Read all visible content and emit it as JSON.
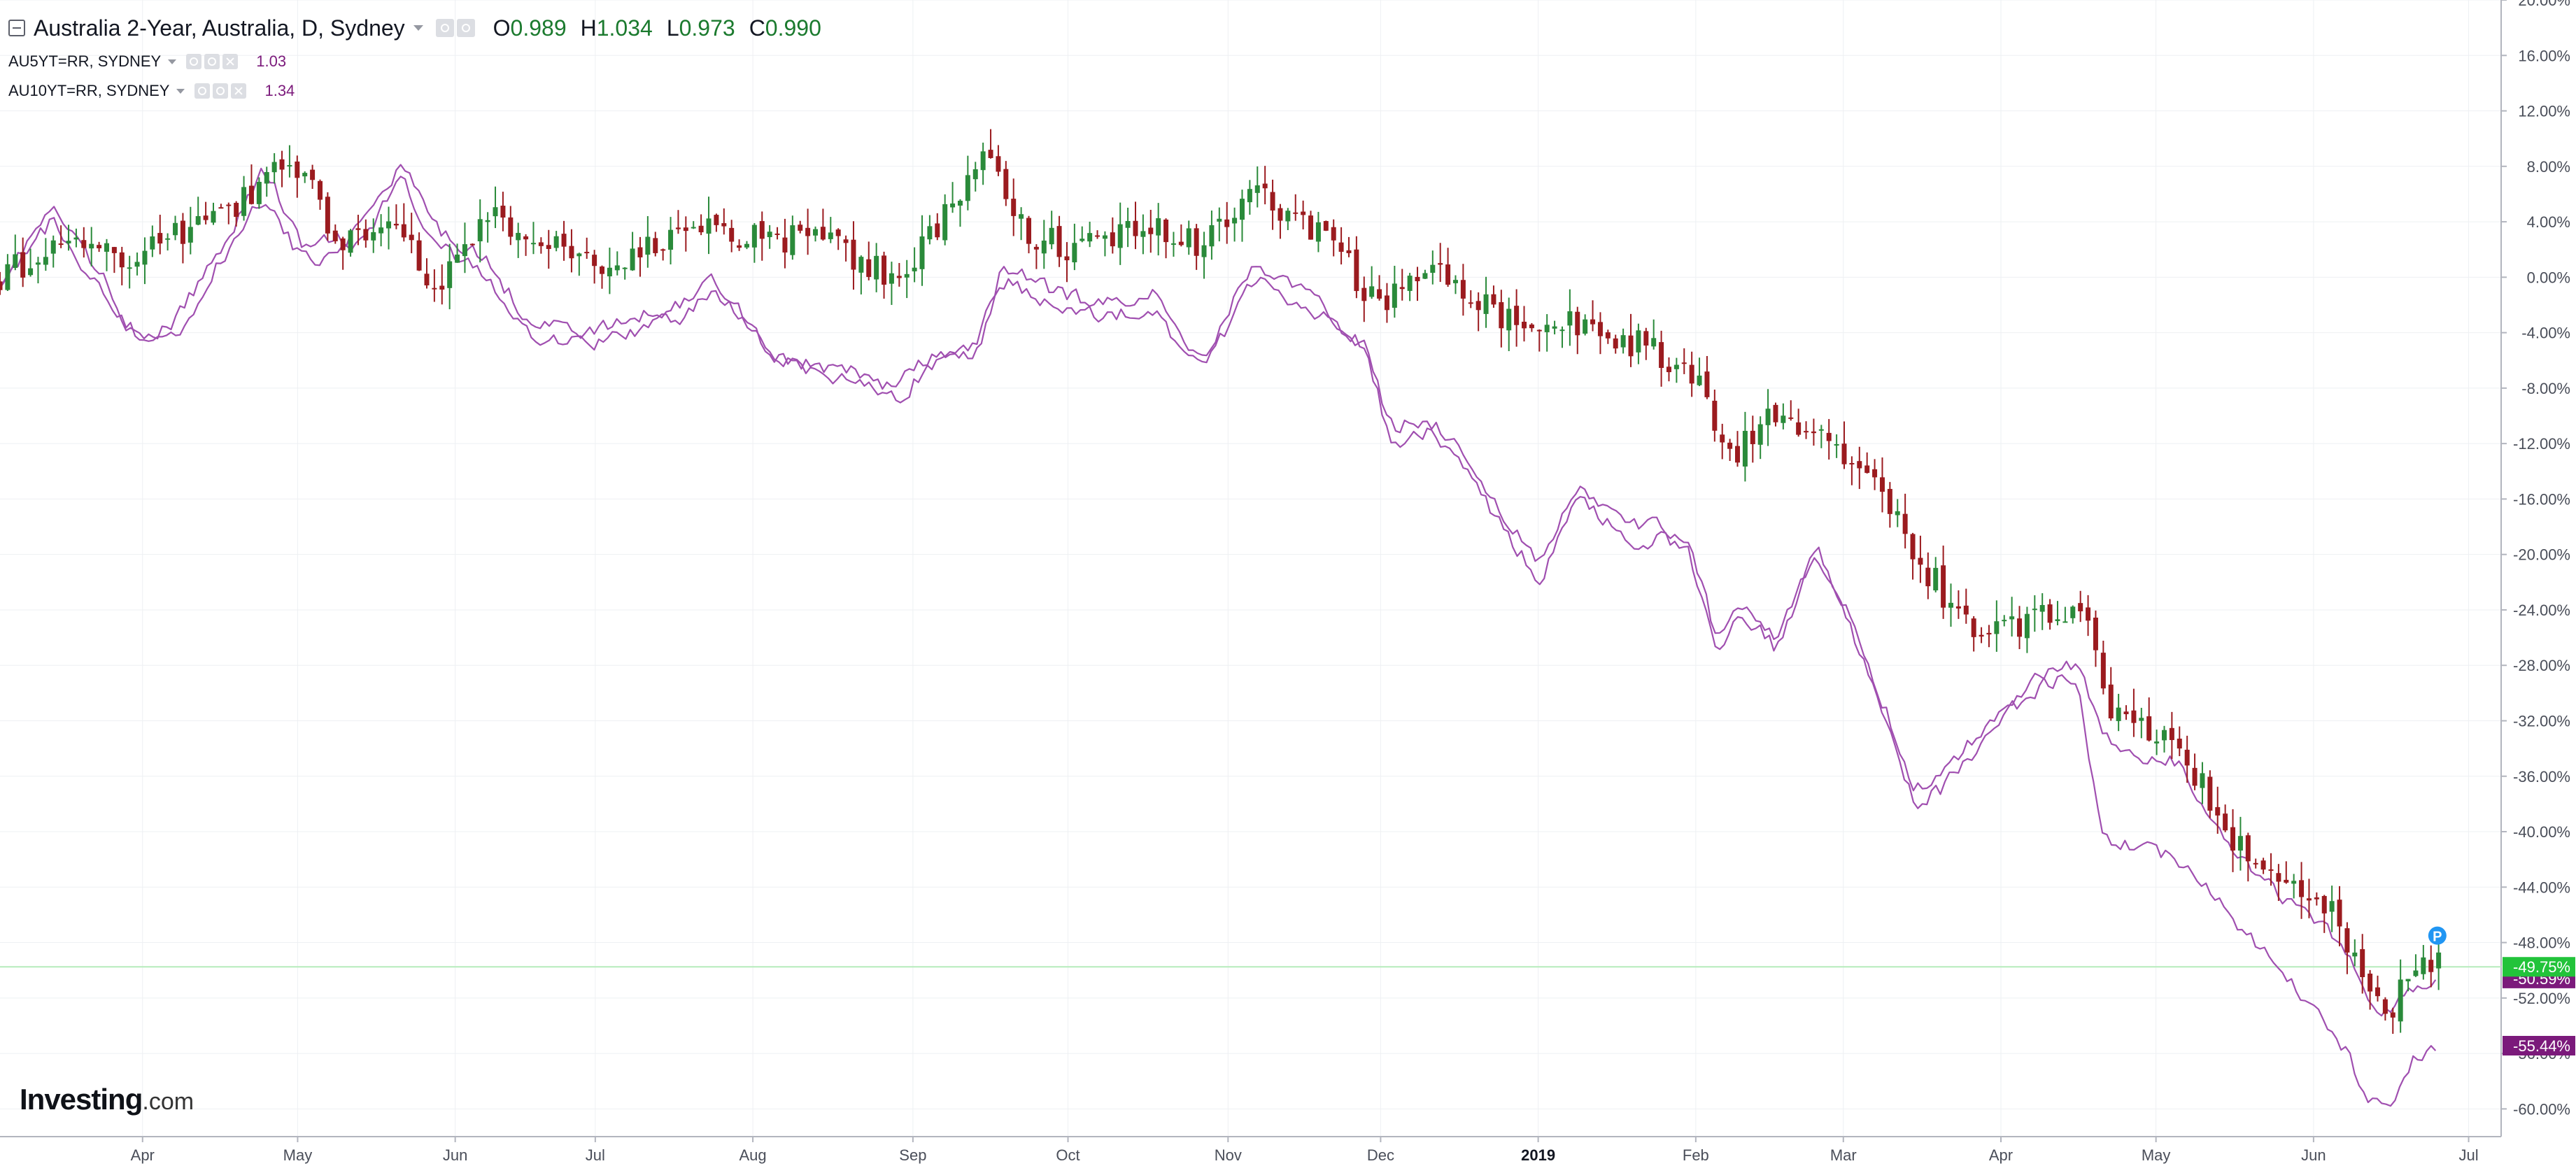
{
  "legend": {
    "main_title": "Australia 2-Year, Australia, D, Sydney",
    "ohlc": [
      {
        "key": "O",
        "value": "0.989"
      },
      {
        "key": "H",
        "value": "1.034"
      },
      {
        "key": "L",
        "value": "0.973"
      },
      {
        "key": "C",
        "value": "0.990"
      }
    ],
    "series_lines": [
      {
        "name": "AU5YT=RR, SYDNEY",
        "value": "1.03"
      },
      {
        "name": "AU10YT=RR, SYDNEY",
        "value": "1.34"
      }
    ]
  },
  "brand": {
    "name": "Investing",
    "suffix": ".com"
  },
  "colors": {
    "up_candle": "#2a8a3a",
    "down_candle": "#9b1b1f",
    "compare_line": "#a04fb0",
    "last_price_badge": "#22c33a",
    "compare_badge": "#7b1a7b",
    "grid": "#eef0f3",
    "axis_text": "#4a4e59"
  },
  "chart_data": {
    "type": "candlestick",
    "title": "Australia 2-Year, Australia, D, Sydney",
    "y_unit": "% change",
    "ylim": [
      -62,
      20
    ],
    "y_ticks": [
      "20.00%",
      "16.00%",
      "12.00%",
      "8.00%",
      "4.00%",
      "0.00%",
      "-4.00%",
      "-8.00%",
      "-12.00%",
      "-16.00%",
      "-20.00%",
      "-24.00%",
      "-28.00%",
      "-32.00%",
      "-36.00%",
      "-40.00%",
      "-44.00%",
      "-48.00%",
      "-52.00%",
      "-56.00%",
      "-60.00%"
    ],
    "y_tick_values": [
      20,
      16,
      12,
      8,
      4,
      0,
      -4,
      -8,
      -12,
      -16,
      -20,
      -24,
      -28,
      -32,
      -36,
      -40,
      -44,
      -48,
      -52,
      -56,
      -60
    ],
    "x_ticks": [
      {
        "label": "Apr",
        "t": 0.057
      },
      {
        "label": "May",
        "t": 0.119
      },
      {
        "label": "Jun",
        "t": 0.182
      },
      {
        "label": "Jul",
        "t": 0.238
      },
      {
        "label": "Aug",
        "t": 0.301
      },
      {
        "label": "Sep",
        "t": 0.365
      },
      {
        "label": "Oct",
        "t": 0.427
      },
      {
        "label": "Nov",
        "t": 0.491
      },
      {
        "label": "Dec",
        "t": 0.552
      },
      {
        "label": "2019",
        "t": 0.615,
        "bold": true
      },
      {
        "label": "Feb",
        "t": 0.678
      },
      {
        "label": "Mar",
        "t": 0.737
      },
      {
        "label": "Apr",
        "t": 0.8
      },
      {
        "label": "May",
        "t": 0.862
      },
      {
        "label": "Jun",
        "t": 0.925
      },
      {
        "label": "Jul",
        "t": 0.987
      }
    ],
    "grid": true,
    "last_values": {
      "main": {
        "label": "-49.75%",
        "value": -49.75
      },
      "au5y": {
        "label": "-50.59%",
        "value": -50.59
      },
      "au10y": {
        "label": "-55.44%",
        "value": -55.44
      }
    },
    "marker_label": "P",
    "main_series": {
      "name": "Australia 2-Year",
      "anchors": [
        [
          0,
          0
        ],
        [
          0.03,
          3
        ],
        [
          0.05,
          1
        ],
        [
          0.08,
          4
        ],
        [
          0.1,
          6
        ],
        [
          0.115,
          9
        ],
        [
          0.135,
          3
        ],
        [
          0.16,
          3
        ],
        [
          0.175,
          -1
        ],
        [
          0.195,
          5
        ],
        [
          0.22,
          2
        ],
        [
          0.25,
          1
        ],
        [
          0.28,
          4
        ],
        [
          0.3,
          3
        ],
        [
          0.33,
          2.5
        ],
        [
          0.36,
          0
        ],
        [
          0.38,
          5
        ],
        [
          0.395,
          10
        ],
        [
          0.41,
          3
        ],
        [
          0.43,
          2
        ],
        [
          0.46,
          4
        ],
        [
          0.48,
          2
        ],
        [
          0.5,
          6
        ],
        [
          0.53,
          3
        ],
        [
          0.55,
          -2
        ],
        [
          0.57,
          1
        ],
        [
          0.6,
          -3
        ],
        [
          0.62,
          -3
        ],
        [
          0.64,
          -4
        ],
        [
          0.66,
          -5
        ],
        [
          0.68,
          -8
        ],
        [
          0.69,
          -13
        ],
        [
          0.71,
          -10
        ],
        [
          0.73,
          -11
        ],
        [
          0.75,
          -15
        ],
        [
          0.77,
          -21
        ],
        [
          0.79,
          -26
        ],
        [
          0.82,
          -24
        ],
        [
          0.835,
          -25
        ],
        [
          0.845,
          -32
        ],
        [
          0.87,
          -33
        ],
        [
          0.89,
          -40
        ],
        [
          0.91,
          -43
        ],
        [
          0.93,
          -45
        ],
        [
          0.94,
          -49
        ],
        [
          0.955,
          -53
        ],
        [
          0.965,
          -50
        ],
        [
          0.975,
          -49.75
        ]
      ]
    },
    "compare_series": [
      {
        "name": "AU5YT=RR, SYDNEY",
        "anchors": [
          [
            0,
            0
          ],
          [
            0.02,
            5
          ],
          [
            0.04,
            0
          ],
          [
            0.055,
            -5
          ],
          [
            0.07,
            -3
          ],
          [
            0.09,
            3
          ],
          [
            0.105,
            8
          ],
          [
            0.12,
            2
          ],
          [
            0.14,
            3
          ],
          [
            0.16,
            8
          ],
          [
            0.175,
            3
          ],
          [
            0.19,
            2
          ],
          [
            0.21,
            -3
          ],
          [
            0.235,
            -4
          ],
          [
            0.27,
            -2
          ],
          [
            0.285,
            0
          ],
          [
            0.31,
            -6
          ],
          [
            0.345,
            -7
          ],
          [
            0.355,
            -8
          ],
          [
            0.37,
            -6
          ],
          [
            0.39,
            -5
          ],
          [
            0.4,
            1
          ],
          [
            0.42,
            -1
          ],
          [
            0.44,
            -2
          ],
          [
            0.46,
            -1
          ],
          [
            0.47,
            -4
          ],
          [
            0.48,
            -6
          ],
          [
            0.5,
            1
          ],
          [
            0.52,
            -1
          ],
          [
            0.545,
            -5
          ],
          [
            0.555,
            -11
          ],
          [
            0.57,
            -10
          ],
          [
            0.585,
            -13
          ],
          [
            0.6,
            -17
          ],
          [
            0.615,
            -21
          ],
          [
            0.63,
            -15
          ],
          [
            0.65,
            -18
          ],
          [
            0.665,
            -18
          ],
          [
            0.675,
            -19
          ],
          [
            0.685,
            -26
          ],
          [
            0.695,
            -23
          ],
          [
            0.71,
            -26
          ],
          [
            0.725,
            -20
          ],
          [
            0.74,
            -25
          ],
          [
            0.765,
            -37
          ],
          [
            0.775,
            -36
          ],
          [
            0.79,
            -33
          ],
          [
            0.805,
            -30
          ],
          [
            0.82,
            -28
          ],
          [
            0.83,
            -28
          ],
          [
            0.84,
            -33
          ],
          [
            0.855,
            -35
          ],
          [
            0.87,
            -35
          ],
          [
            0.885,
            -40
          ],
          [
            0.9,
            -43
          ],
          [
            0.92,
            -46
          ],
          [
            0.935,
            -48
          ],
          [
            0.945,
            -52
          ],
          [
            0.955,
            -53
          ],
          [
            0.965,
            -51
          ],
          [
            0.975,
            -50.59
          ]
        ]
      },
      {
        "name": "AU10YT=RR, SYDNEY",
        "anchors": [
          [
            0,
            0
          ],
          [
            0.02,
            4
          ],
          [
            0.04,
            -1
          ],
          [
            0.055,
            -4.5
          ],
          [
            0.07,
            -4
          ],
          [
            0.09,
            2
          ],
          [
            0.105,
            6
          ],
          [
            0.12,
            1
          ],
          [
            0.14,
            2
          ],
          [
            0.16,
            7
          ],
          [
            0.175,
            2
          ],
          [
            0.19,
            1
          ],
          [
            0.21,
            -4
          ],
          [
            0.235,
            -5
          ],
          [
            0.27,
            -3
          ],
          [
            0.285,
            -1
          ],
          [
            0.31,
            -6
          ],
          [
            0.345,
            -8
          ],
          [
            0.36,
            -8.5
          ],
          [
            0.37,
            -6.5
          ],
          [
            0.39,
            -5.5
          ],
          [
            0.4,
            0
          ],
          [
            0.42,
            -2
          ],
          [
            0.44,
            -3
          ],
          [
            0.46,
            -2
          ],
          [
            0.47,
            -5
          ],
          [
            0.48,
            -7
          ],
          [
            0.5,
            0
          ],
          [
            0.52,
            -2
          ],
          [
            0.545,
            -5
          ],
          [
            0.555,
            -12
          ],
          [
            0.57,
            -11
          ],
          [
            0.585,
            -14
          ],
          [
            0.6,
            -18
          ],
          [
            0.615,
            -22
          ],
          [
            0.63,
            -16
          ],
          [
            0.65,
            -19
          ],
          [
            0.665,
            -19
          ],
          [
            0.675,
            -20
          ],
          [
            0.685,
            -27
          ],
          [
            0.695,
            -24
          ],
          [
            0.71,
            -27
          ],
          [
            0.725,
            -19
          ],
          [
            0.74,
            -26
          ],
          [
            0.765,
            -38
          ],
          [
            0.775,
            -37
          ],
          [
            0.79,
            -34
          ],
          [
            0.805,
            -31
          ],
          [
            0.82,
            -29
          ],
          [
            0.83,
            -29
          ],
          [
            0.84,
            -41
          ],
          [
            0.855,
            -41
          ],
          [
            0.87,
            -42
          ],
          [
            0.885,
            -45
          ],
          [
            0.9,
            -48
          ],
          [
            0.92,
            -52
          ],
          [
            0.935,
            -55
          ],
          [
            0.945,
            -59
          ],
          [
            0.955,
            -60
          ],
          [
            0.965,
            -56
          ],
          [
            0.975,
            -55.44
          ]
        ]
      }
    ]
  }
}
